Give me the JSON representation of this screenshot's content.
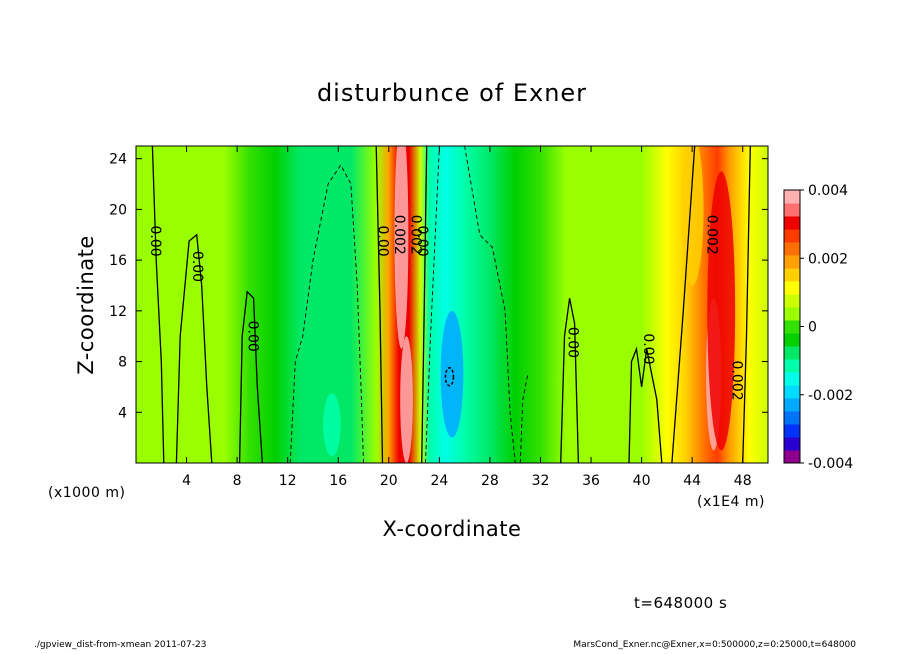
{
  "chart_data": {
    "type": "heatmap",
    "title": "disturbunce of Exner",
    "xlabel": "X-coordinate",
    "ylabel": "Z-coordinate",
    "x_unit_left": "(x1000 m)",
    "x_unit_right": "(x1E4 m)",
    "xlim": [
      0,
      50
    ],
    "ylim": [
      0,
      25
    ],
    "xticks": [
      "4",
      "8",
      "12",
      "16",
      "20",
      "24",
      "28",
      "32",
      "36",
      "40",
      "44",
      "48"
    ],
    "yticks": [
      "4",
      "8",
      "12",
      "16",
      "20",
      "24"
    ],
    "colorbar": {
      "min": -0.004,
      "max": 0.004,
      "ticks": [
        "-0.004",
        "-0.002",
        "0",
        "0.002",
        "0.004"
      ],
      "colors": [
        "#8c008c",
        "#2a00d0",
        "#0033ff",
        "#0073ff",
        "#00a8ff",
        "#00dcff",
        "#00ffe6",
        "#00ffaa",
        "#00e866",
        "#00d000",
        "#33e000",
        "#99ff00",
        "#ccff00",
        "#ffff00",
        "#ffd000",
        "#ffa000",
        "#ff7000",
        "#ff3c00",
        "#ee0000",
        "#ff7070",
        "#ffb0b0"
      ]
    },
    "field_columns": [
      {
        "x": 0,
        "value": 0.0004
      },
      {
        "x": 3,
        "value": 0.0004
      },
      {
        "x": 4.5,
        "value": 0.0005
      },
      {
        "x": 7,
        "value": 0.0002
      },
      {
        "x": 9,
        "value": 0.0001
      },
      {
        "x": 11,
        "value": -0.0002
      },
      {
        "x": 13,
        "value": -0.0006
      },
      {
        "x": 15,
        "value": -0.0009
      },
      {
        "x": 17,
        "value": -0.0007
      },
      {
        "x": 19,
        "value": 0.0002
      },
      {
        "x": 20,
        "value": 0.0018
      },
      {
        "x": 20.8,
        "value": 0.0032
      },
      {
        "x": 21.6,
        "value": 0.003
      },
      {
        "x": 22.5,
        "value": 0.0008
      },
      {
        "x": 23.2,
        "value": -0.0012
      },
      {
        "x": 24.5,
        "value": -0.0016
      },
      {
        "x": 26,
        "value": -0.0012
      },
      {
        "x": 28,
        "value": -0.0007
      },
      {
        "x": 30,
        "value": -0.0003
      },
      {
        "x": 32,
        "value": 0.0001
      },
      {
        "x": 34,
        "value": 0.0003
      },
      {
        "x": 36,
        "value": 0.0004
      },
      {
        "x": 38,
        "value": 0.0005
      },
      {
        "x": 40,
        "value": 0.0005
      },
      {
        "x": 42,
        "value": 0.001
      },
      {
        "x": 43.5,
        "value": 0.0016
      },
      {
        "x": 45,
        "value": 0.0024
      },
      {
        "x": 46,
        "value": 0.0026
      },
      {
        "x": 47,
        "value": 0.0018
      },
      {
        "x": 48.5,
        "value": 0.001
      },
      {
        "x": 50,
        "value": 0.0006
      }
    ],
    "contour_labels": [
      {
        "text": "0.00",
        "x": 1.2,
        "z": 17.5
      },
      {
        "text": "0.00",
        "x": 4.5,
        "z": 15.5
      },
      {
        "text": "0.00",
        "x": 8.9,
        "z": 10
      },
      {
        "text": "0.00",
        "x": 19.2,
        "z": 17.5
      },
      {
        "text": "0.002",
        "x": 20.5,
        "z": 18
      },
      {
        "text": "0.002",
        "x": 21.8,
        "z": 18
      },
      {
        "text": "0.00",
        "x": 22.3,
        "z": 17.5
      },
      {
        "text": "0.00",
        "x": 34.2,
        "z": 9.5
      },
      {
        "text": "0.00",
        "x": 40.2,
        "z": 9
      },
      {
        "text": "0.002",
        "x": 45.2,
        "z": 18
      },
      {
        "text": "0.002",
        "x": 47.2,
        "z": 6.5
      }
    ]
  },
  "footer": {
    "time": "t=648000 s",
    "left": "./gpview_dist-from-xmean   2011-07-23",
    "right": "MarsCond_Exner.nc@Exner,x=0:500000,z=0:25000,t=648000"
  }
}
